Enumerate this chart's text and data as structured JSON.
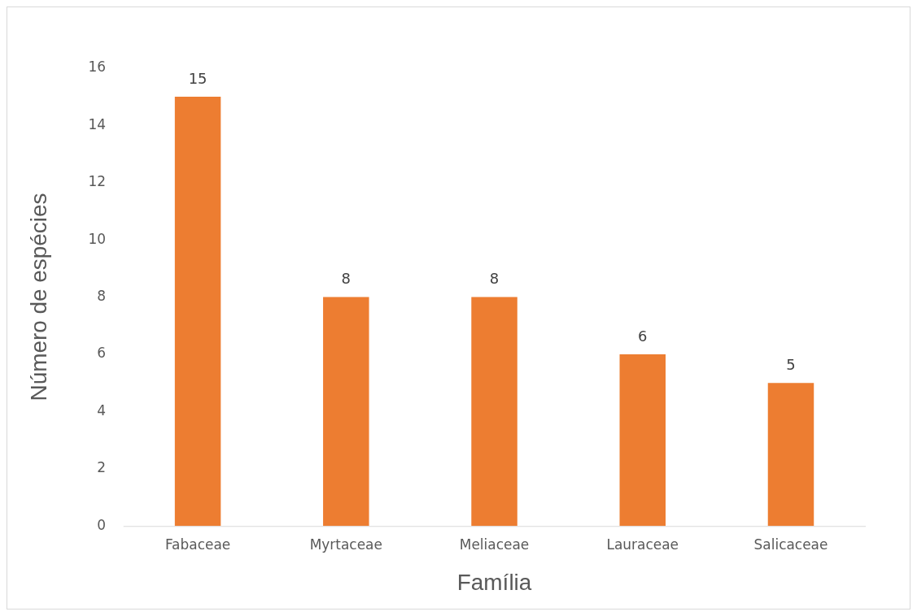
{
  "chart_data": {
    "type": "bar",
    "xlabel": "Família",
    "ylabel": "Número de espécies",
    "categories": [
      "Fabaceae",
      "Myrtaceae",
      "Meliaceae",
      "Lauraceae",
      "Salicaceae"
    ],
    "values": [
      15,
      8,
      8,
      6,
      5
    ],
    "color": "#ed7d31",
    "ylim": [
      0,
      16
    ],
    "yticks": [
      0,
      2,
      4,
      6,
      8,
      10,
      12,
      14,
      16
    ],
    "grid": false,
    "legend": false,
    "data_labels": true
  }
}
